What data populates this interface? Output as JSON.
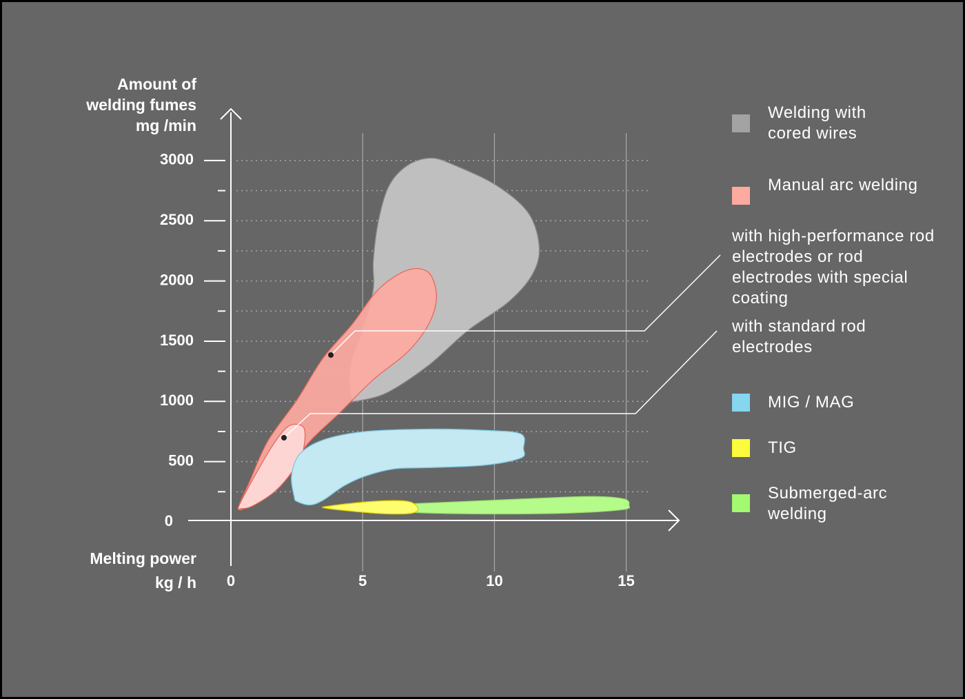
{
  "chart_data": {
    "type": "region",
    "ylabel": [
      "Amount of",
      "welding fumes",
      "mg /min"
    ],
    "xlabel": [
      "Melting power",
      "kg / h"
    ],
    "xlim": [
      0,
      17
    ],
    "ylim": [
      0,
      3400
    ],
    "xticks": [
      0,
      5,
      10,
      15
    ],
    "yticks": [
      0,
      500,
      1000,
      1500,
      2000,
      2500,
      3000
    ],
    "minor_yticks": [
      250,
      750,
      1250,
      1750,
      2250,
      2750
    ],
    "grid": true,
    "legend_group": {
      "name": "Manual arc welding",
      "color": "#fdaaa0"
    },
    "series": [
      {
        "name": "Welding with cored wires",
        "color": "#bfbfbf",
        "legend_color": "#a3a3a3",
        "x": [
          4.6,
          4.5,
          4.6,
          5.0,
          5.4,
          5.4,
          5.6,
          6.0,
          6.7,
          7.6,
          8.5,
          10.1,
          11.3,
          11.7,
          11.4,
          10.5,
          9.0,
          7.5,
          5.9,
          4.7
        ],
        "values": [
          1010,
          1160,
          1360,
          1590,
          1930,
          2160,
          2500,
          2790,
          2960,
          3020,
          2960,
          2790,
          2560,
          2270,
          2040,
          1820,
          1590,
          1300,
          1070,
          1000
        ]
      },
      {
        "name": "with high-performance rod electrodes or rod electrodes with special coating",
        "color": "#fdaaa0",
        "x": [
          0.3,
          0.7,
          1.4,
          2.5,
          3.5,
          4.6,
          5.6,
          6.7,
          7.5,
          7.8,
          7.5,
          6.7,
          5.4,
          4.1,
          3.0,
          2.2,
          1.4,
          0.5
        ],
        "values": [
          130,
          330,
          670,
          1010,
          1360,
          1640,
          1930,
          2090,
          2070,
          1870,
          1640,
          1410,
          1180,
          900,
          670,
          440,
          240,
          110
        ]
      },
      {
        "name": "with standard rod electrodes",
        "color": "#fdd6d3",
        "x": [
          0.3,
          0.9,
          1.6,
          2.1,
          2.5,
          2.8,
          2.7,
          2.2,
          1.6,
          0.8,
          0.4
        ],
        "values": [
          130,
          380,
          640,
          780,
          810,
          760,
          560,
          380,
          240,
          130,
          110
        ]
      },
      {
        "name": "MIG / MAG",
        "color": "#c4e9f3",
        "legend_color": "#85d6ee",
        "x": [
          2.4,
          2.3,
          2.6,
          3.5,
          5.1,
          7.5,
          9.6,
          11.0,
          11.1,
          11.0,
          9.6,
          7.5,
          6.2,
          5.1,
          4.3,
          3.5,
          3.0,
          2.5
        ],
        "values": [
          210,
          380,
          560,
          680,
          750,
          770,
          760,
          730,
          610,
          530,
          470,
          450,
          440,
          380,
          300,
          180,
          140,
          170
        ]
      },
      {
        "name": "Submerged-arc welding",
        "color": "#b5fb8a",
        "legend_color": "#a3f96f",
        "x": [
          3.8,
          6.9,
          11.1,
          13.7,
          14.9,
          15.1,
          14.8,
          12.2,
          8.2,
          5.9,
          3.8
        ],
        "values": [
          130,
          150,
          190,
          210,
          190,
          140,
          100,
          70,
          70,
          90,
          110
        ]
      },
      {
        "name": "TIG",
        "color": "#fdfd6e",
        "legend_color": "#fbfb3c",
        "x": [
          3.7,
          5.4,
          6.7,
          7.1,
          6.8,
          5.6,
          3.7
        ],
        "values": [
          130,
          170,
          170,
          110,
          70,
          70,
          110
        ]
      }
    ]
  }
}
